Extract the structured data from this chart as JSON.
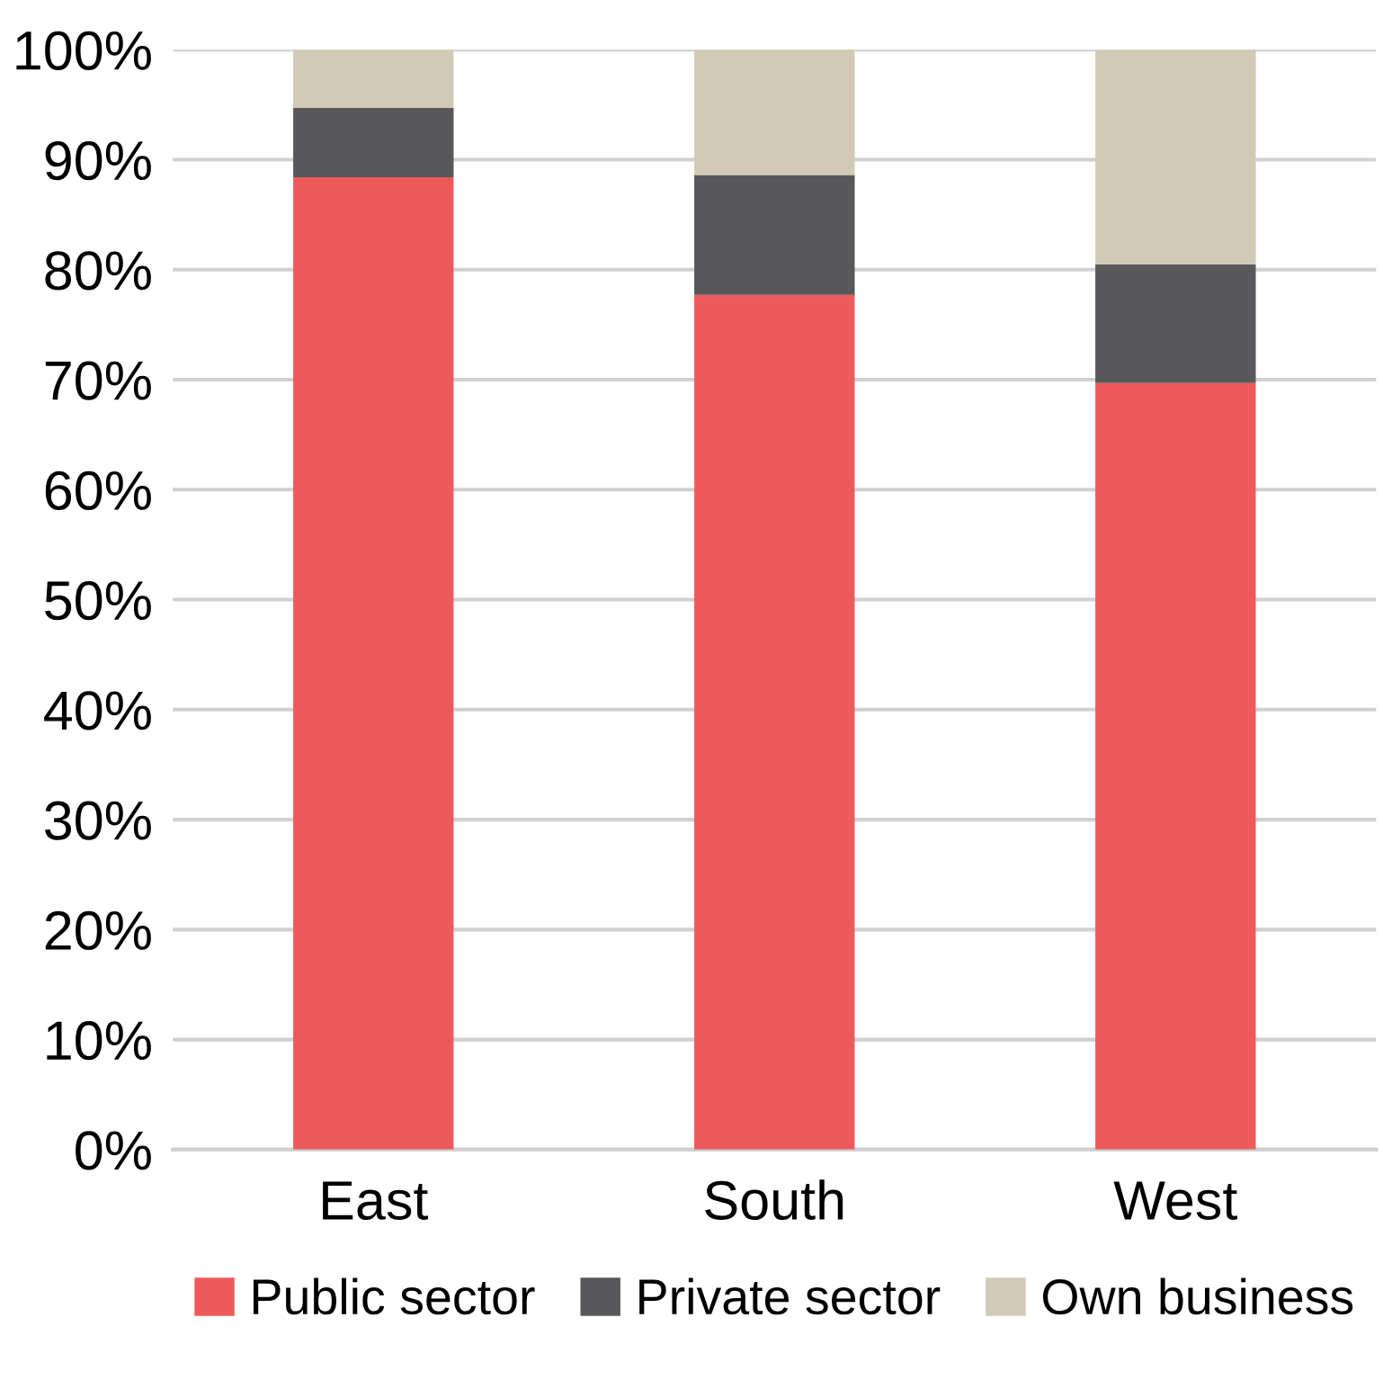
{
  "chart_data": {
    "type": "bar",
    "stacked": true,
    "categories": [
      "East",
      "South",
      "West"
    ],
    "series": [
      {
        "name": "Public sector",
        "color": "#ee5a5a",
        "values": [
          88.4,
          77.7,
          69.7
        ]
      },
      {
        "name": "Private sector",
        "color": "#58585a",
        "values": [
          6.3,
          10.9,
          10.8
        ]
      },
      {
        "name": "Own business",
        "color": "#d2cab6",
        "values": [
          5.3,
          11.4,
          19.5
        ]
      }
    ],
    "ylim": [
      0,
      100
    ],
    "yticks": [
      {
        "value": 0,
        "label": "0%"
      },
      {
        "value": 10,
        "label": "10%"
      },
      {
        "value": 20,
        "label": "20%"
      },
      {
        "value": 30,
        "label": "30%"
      },
      {
        "value": 40,
        "label": "40%"
      },
      {
        "value": 50,
        "label": "50%"
      },
      {
        "value": 60,
        "label": "60%"
      },
      {
        "value": 70,
        "label": "70%"
      },
      {
        "value": 80,
        "label": "80%"
      },
      {
        "value": 90,
        "label": "90%"
      },
      {
        "value": 100,
        "label": "100%"
      }
    ],
    "grid": "y",
    "legend": "bottom"
  }
}
